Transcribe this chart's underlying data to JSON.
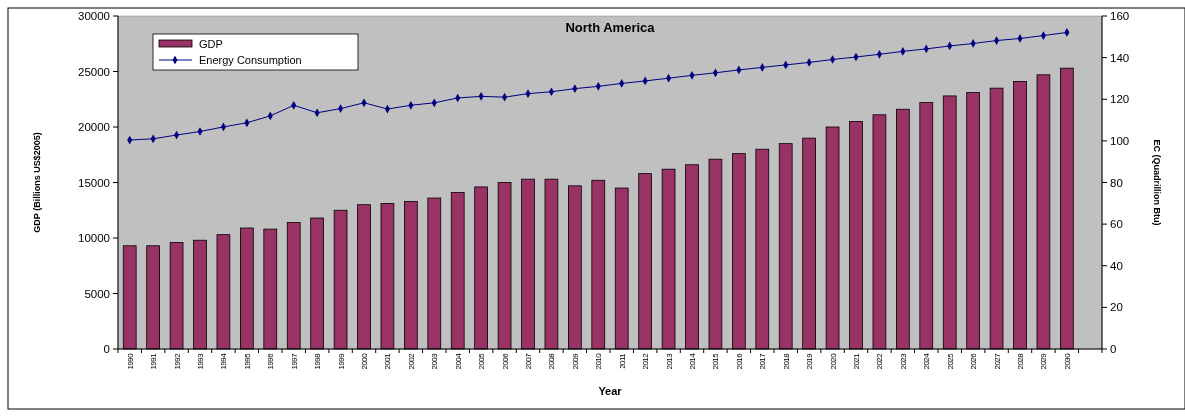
{
  "chart_data": {
    "type": "bar",
    "title": "North America",
    "xlabel": "Year",
    "ylabel": "GDP (Billions US$2005)",
    "y2label": "EC (Quadrillion Btu)",
    "categories": [
      "1990",
      "1991",
      "1992",
      "1993",
      "1994",
      "1995",
      "1996",
      "1997",
      "1998",
      "1999",
      "2000",
      "2001",
      "2002",
      "2003",
      "2004",
      "2005",
      "2006",
      "2007",
      "2008",
      "2009",
      "2010",
      "2011",
      "2012",
      "2013",
      "2014",
      "2015",
      "2016",
      "2017",
      "2018",
      "2019",
      "2020",
      "2021",
      "2022",
      "2023",
      "2024",
      "2025",
      "2026",
      "2027",
      "2028",
      "2029",
      "2030",
      null
    ],
    "series": [
      {
        "name": "GDP",
        "color": "#993366",
        "values": [
          9300,
          9300,
          9600,
          9800,
          10300,
          10900,
          10800,
          11400,
          11800,
          12500,
          13000,
          13100,
          13300,
          13600,
          14100,
          14600,
          15000,
          15300,
          15300,
          14700,
          15200,
          14500,
          15800,
          16200,
          16600,
          17100,
          17600,
          18000,
          18500,
          19000,
          20000,
          20500,
          21100,
          21600,
          22200,
          22800,
          23100,
          23500,
          24100,
          24700,
          25300,
          null
        ]
      },
      {
        "name": "Energy Consumption",
        "type": "line",
        "axis": "y2",
        "color": "#000080",
        "marker": "diamond",
        "values": [
          100.4,
          101.0,
          102.8,
          104.5,
          106.7,
          108.7,
          112.0,
          117.1,
          113.5,
          115.5,
          118.3,
          115.3,
          117.1,
          118.3,
          120.6,
          121.4,
          121.0,
          122.7,
          123.6,
          125.1,
          126.2,
          127.6,
          128.8,
          130.1,
          131.5,
          132.7,
          134.1,
          135.3,
          136.5,
          137.7,
          139.1,
          140.3,
          141.6,
          143.0,
          144.2,
          145.6,
          146.8,
          148.2,
          149.2,
          150.6,
          152.1,
          null
        ]
      }
    ],
    "ylim": [
      0,
      30000
    ],
    "yticks": [
      0,
      5000,
      10000,
      15000,
      20000,
      25000,
      30000
    ],
    "y2lim": [
      0,
      160
    ],
    "y2ticks": [
      0,
      20,
      40,
      60,
      80,
      100,
      120,
      140,
      160
    ],
    "legend": "top left",
    "grid": false
  }
}
